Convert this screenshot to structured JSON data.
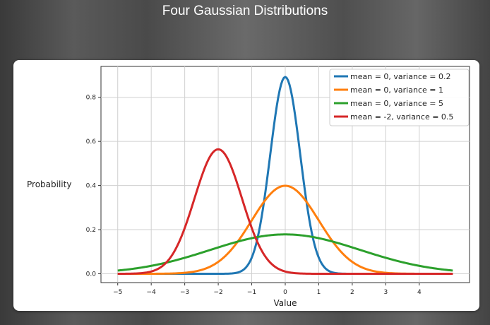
{
  "page": {
    "title": "Four Gaussian Distributions"
  },
  "chart_data": {
    "type": "line",
    "title": "",
    "xlabel": "Value",
    "ylabel": "Probability",
    "xlim": [
      -5.5,
      5.5
    ],
    "ylim": [
      -0.04,
      0.94
    ],
    "xticks": [
      -5,
      -4,
      -3,
      -2,
      -1,
      0,
      1,
      2,
      3,
      4
    ],
    "xtick_labels": [
      "−5",
      "−4",
      "−3",
      "−2",
      "−1",
      "0",
      "1",
      "2",
      "3",
      "4"
    ],
    "yticks": [
      0.0,
      0.2,
      0.4,
      0.6,
      0.8
    ],
    "ytick_labels": [
      "0.0",
      "0.2",
      "0.4",
      "0.6",
      "0.8"
    ],
    "grid": true,
    "legend_position": "top-right",
    "x_range": [
      -5,
      5
    ],
    "series": [
      {
        "name": "mean = 0, variance = 0.2",
        "mean": 0,
        "variance": 0.2,
        "color": "#1f77b4"
      },
      {
        "name": "mean = 0, variance = 1",
        "mean": 0,
        "variance": 1,
        "color": "#ff7f0e"
      },
      {
        "name": "mean = 0, variance = 5",
        "mean": 0,
        "variance": 5,
        "color": "#2ca02c"
      },
      {
        "name": "mean = -2, variance = 0.5",
        "mean": -2,
        "variance": 0.5,
        "color": "#d62728"
      }
    ]
  }
}
